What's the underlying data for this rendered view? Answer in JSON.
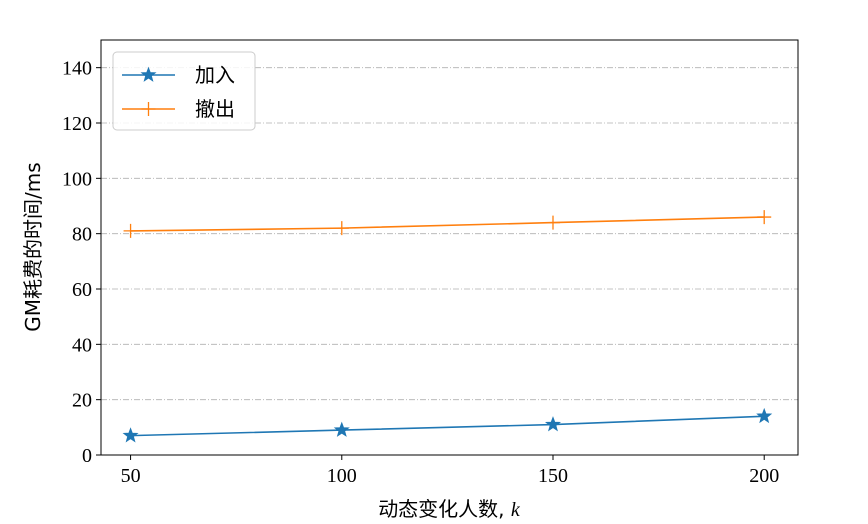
{
  "chart_data": {
    "type": "line",
    "x": [
      50,
      100,
      150,
      200
    ],
    "series": [
      {
        "name": "加入",
        "values": [
          7,
          9,
          11,
          14
        ],
        "color": "#1f77b4",
        "marker": "star"
      },
      {
        "name": "撤出",
        "values": [
          81,
          82,
          84,
          86
        ],
        "color": "#ff7f0e",
        "marker": "plus"
      }
    ],
    "xlabel": "动态变化人数, k",
    "ylabel": "GM耗费的时间/ms",
    "xlim": [
      43,
      208
    ],
    "ylim": [
      0,
      150
    ],
    "xticks": [
      50,
      100,
      150,
      200
    ],
    "yticks": [
      0,
      20,
      40,
      60,
      80,
      100,
      120,
      140
    ],
    "grid": "horizontal dash-dot",
    "legend_position": "top-left"
  }
}
